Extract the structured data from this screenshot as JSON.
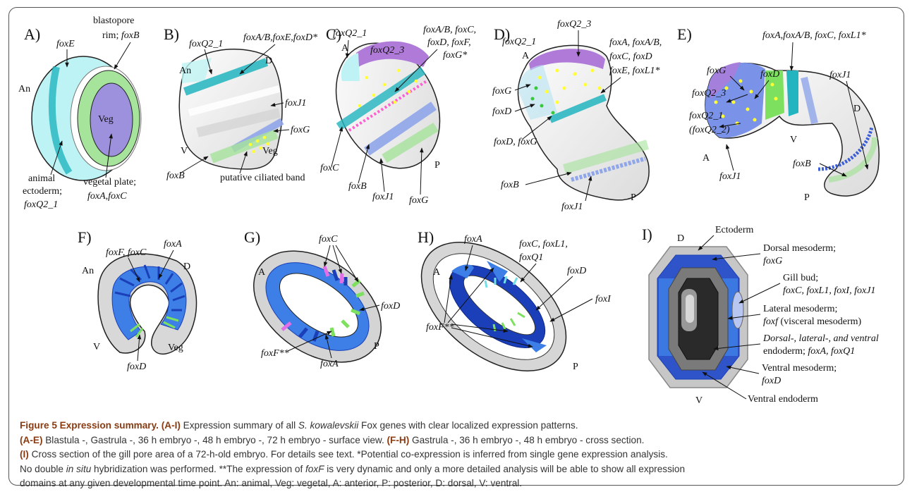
{
  "panels": {
    "A": {
      "letter": "A)",
      "foxE": "foxE",
      "blastopore_rim": "blastopore",
      "blastopore_rim2": "rim; ",
      "foxB": "foxB",
      "An": "An",
      "Veg": "Veg",
      "animal": "animal",
      "ectoderm": "ectoderm;",
      "foxQ2_1": "foxQ2_1",
      "vegetal_plate": "vegetal plate;",
      "foxA_foxC": "foxA,foxC"
    },
    "B": {
      "letter": "B)",
      "foxQ2_1": "foxQ2_1",
      "An": "An",
      "D": "D",
      "foxABED": "foxA/B,foxE,foxD*",
      "foxJ1": "foxJ1",
      "foxG": "foxG",
      "V": "V",
      "Veg": "Veg",
      "foxB": "foxB",
      "ciliated": "putative ciliated band"
    },
    "C": {
      "letter": "C)",
      "foxQ2_1": "foxQ2_1",
      "foxQ2_3": "foxQ2_3",
      "A": "A",
      "line1": "foxA/B, foxC,",
      "line2": "foxD, foxF,",
      "line3": "foxG*",
      "foxC": "foxC",
      "foxB": "foxB",
      "foxJ1": "foxJ1",
      "foxG": "foxG",
      "P": "P"
    },
    "D": {
      "letter": "D)",
      "foxQ2_1": "foxQ2_1",
      "foxQ2_3": "foxQ2_3",
      "A": "A",
      "line1": "foxA, foxA/B,",
      "line2": "foxC, foxD",
      "line3": "foxE, foxL1*",
      "foxG": "foxG",
      "foxD": "foxD",
      "foxDG": "foxD, foxG",
      "foxB": "foxB",
      "foxJ1": "foxJ1",
      "P": "P"
    },
    "E": {
      "letter": "E)",
      "top": "foxA,foxA/B, foxC, foxL1*",
      "foxG": "foxG",
      "foxD": "foxD",
      "foxJ1_top": "foxJ1",
      "foxQ2_3": "foxQ2_3",
      "D": "D",
      "foxQ2_1": "foxQ2_1",
      "foxQ2_2": "(foxQ2_2)",
      "V": "V",
      "A": "A",
      "foxB": "foxB",
      "foxJ1": "foxJ1",
      "P": "P"
    },
    "F": {
      "letter": "F)",
      "foxFC": "foxF, foxC",
      "foxA": "foxA",
      "An": "An",
      "D": "D",
      "V": "V",
      "Veg": "Veg",
      "foxD": "foxD"
    },
    "G": {
      "letter": "G)",
      "foxC": "foxC",
      "A": "A",
      "foxD": "foxD",
      "P": "P",
      "foxF": "foxF**",
      "foxA": "foxA"
    },
    "H": {
      "letter": "H)",
      "A": "A",
      "foxA": "foxA",
      "line1": "foxC, foxL1,",
      "line2": "foxQ1",
      "foxD": "foxD",
      "foxI": "foxI",
      "foxF": "foxF**",
      "P": "P"
    },
    "I": {
      "letter": "I)",
      "D": "D",
      "ectoderm": "Ectoderm",
      "dorsal_meso": "Dorsal mesoderm;",
      "foxG": "foxG",
      "gill": "Gill bud;",
      "gill_genes": "foxC, foxL1, foxI, foxJ1",
      "lateral": "Lateral mesoderm;",
      "foxf": "foxf",
      "visceral": " (visceral mesoderm)",
      "endo1": "Dorsal-, lateral-, and ventral",
      "endo2": "endoderm; ",
      "endo_genes": "foxA, foxQ1",
      "ventral_meso": "Ventral mesoderm;",
      "foxD": "foxD",
      "ventral_endo": "Ventral endoderm",
      "V": "V"
    }
  },
  "caption": {
    "title": "Figure 5 Expression summary.",
    "p1_tag": "(A-I)",
    "p1a": " Expression summary of all ",
    "p1_species": "S. kowalevskii",
    "p1b": " Fox genes with clear localized expression patterns.",
    "p2_tag": "(A-E)",
    "p2": " Blastula -, Gastrula -, 36 h embryo -, 48 h embryo -, 72 h embryo - surface view. ",
    "p3_tag": "(F-H)",
    "p3": " Gastrula -, 36 h embryo -, 48 h embryo - cross section.",
    "p4_tag": "(I)",
    "p4": " Cross section of the gill pore area of a 72-h-old embryo. For details see text. *Potential co-expression is inferred from single gene expression analysis.",
    "p5a": "No double ",
    "p5_insitu": "in situ",
    "p5b": " hybridization was performed. **The expression of ",
    "p5_foxF": "foxF",
    "p5c": " is very dynamic and only a more detailed analysis will be able to show all expression",
    "p6": "domains at any given developmental time point. An: animal, Veg: vegetal, A: anterior, P: posterior, D: dorsal, V: ventral."
  },
  "colors": {
    "cyan": "#22b5bf",
    "green": "#9ee08e",
    "purple": "#b07ad8",
    "blue": "#3d7fe6",
    "darkblue": "#1a3fb8",
    "yellow": "#ffff33",
    "caption_accent": "#8a3b12"
  }
}
